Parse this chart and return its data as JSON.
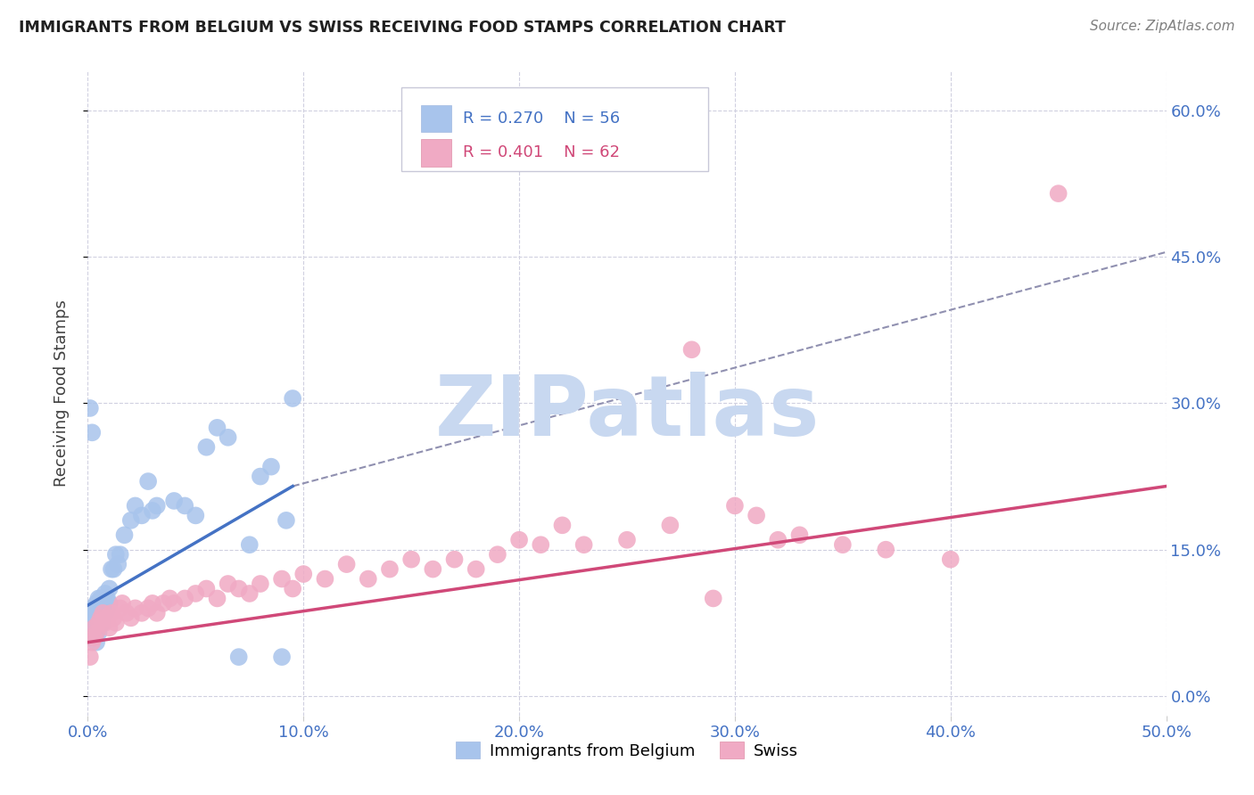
{
  "title": "IMMIGRANTS FROM BELGIUM VS SWISS RECEIVING FOOD STAMPS CORRELATION CHART",
  "source": "Source: ZipAtlas.com",
  "xlabel_ticks": [
    "0.0%",
    "10.0%",
    "20.0%",
    "30.0%",
    "40.0%",
    "50.0%"
  ],
  "xlabel_vals": [
    0.0,
    0.1,
    0.2,
    0.3,
    0.4,
    0.5
  ],
  "ylabel": "Receiving Food Stamps",
  "xlim": [
    0.0,
    0.5
  ],
  "ylim": [
    -0.02,
    0.64
  ],
  "legend_belgium_R": "0.270",
  "legend_belgium_N": "56",
  "legend_swiss_R": "0.401",
  "legend_swiss_N": "62",
  "belgium_color": "#a8c4ec",
  "swiss_color": "#f0aac4",
  "belgium_line_color": "#4472c4",
  "swiss_line_color": "#d04878",
  "dashed_line_color": "#9090b0",
  "watermark_color": "#c8d8f0",
  "grid_color": "#d0d0e0",
  "background_color": "#ffffff",
  "belgium_line_x0": 0.0,
  "belgium_line_y0": 0.093,
  "belgium_line_x1": 0.095,
  "belgium_line_y1": 0.215,
  "swiss_line_x0": 0.0,
  "swiss_line_y0": 0.055,
  "swiss_line_x1": 0.5,
  "swiss_line_y1": 0.215,
  "dashed_line_x0": 0.095,
  "dashed_line_y0": 0.215,
  "dashed_line_x1": 0.5,
  "dashed_line_y1": 0.455,
  "belgium_x": [
    0.001,
    0.001,
    0.002,
    0.002,
    0.003,
    0.003,
    0.003,
    0.003,
    0.004,
    0.004,
    0.004,
    0.004,
    0.004,
    0.005,
    0.005,
    0.005,
    0.005,
    0.006,
    0.006,
    0.006,
    0.007,
    0.007,
    0.007,
    0.007,
    0.008,
    0.008,
    0.008,
    0.009,
    0.009,
    0.01,
    0.01,
    0.011,
    0.012,
    0.013,
    0.014,
    0.015,
    0.017,
    0.02,
    0.022,
    0.025,
    0.028,
    0.03,
    0.032,
    0.04,
    0.045,
    0.05,
    0.055,
    0.06,
    0.065,
    0.07,
    0.075,
    0.08,
    0.085,
    0.09,
    0.092,
    0.095
  ],
  "belgium_y": [
    0.295,
    0.08,
    0.27,
    0.09,
    0.08,
    0.09,
    0.075,
    0.065,
    0.095,
    0.085,
    0.075,
    0.065,
    0.055,
    0.1,
    0.09,
    0.08,
    0.065,
    0.1,
    0.095,
    0.08,
    0.1,
    0.095,
    0.085,
    0.075,
    0.105,
    0.095,
    0.085,
    0.1,
    0.09,
    0.11,
    0.095,
    0.13,
    0.13,
    0.145,
    0.135,
    0.145,
    0.165,
    0.18,
    0.195,
    0.185,
    0.22,
    0.19,
    0.195,
    0.2,
    0.195,
    0.185,
    0.255,
    0.275,
    0.265,
    0.04,
    0.155,
    0.225,
    0.235,
    0.04,
    0.18,
    0.305
  ],
  "swiss_x": [
    0.001,
    0.002,
    0.003,
    0.003,
    0.004,
    0.005,
    0.006,
    0.007,
    0.008,
    0.009,
    0.01,
    0.011,
    0.012,
    0.013,
    0.015,
    0.016,
    0.018,
    0.02,
    0.022,
    0.025,
    0.028,
    0.03,
    0.032,
    0.035,
    0.038,
    0.04,
    0.045,
    0.05,
    0.055,
    0.06,
    0.065,
    0.07,
    0.075,
    0.08,
    0.09,
    0.095,
    0.1,
    0.11,
    0.12,
    0.13,
    0.14,
    0.15,
    0.16,
    0.17,
    0.18,
    0.19,
    0.2,
    0.21,
    0.22,
    0.23,
    0.25,
    0.27,
    0.28,
    0.29,
    0.3,
    0.31,
    0.32,
    0.33,
    0.35,
    0.37,
    0.4,
    0.45
  ],
  "swiss_y": [
    0.04,
    0.055,
    0.07,
    0.06,
    0.065,
    0.075,
    0.08,
    0.085,
    0.075,
    0.08,
    0.07,
    0.085,
    0.08,
    0.075,
    0.09,
    0.095,
    0.085,
    0.08,
    0.09,
    0.085,
    0.09,
    0.095,
    0.085,
    0.095,
    0.1,
    0.095,
    0.1,
    0.105,
    0.11,
    0.1,
    0.115,
    0.11,
    0.105,
    0.115,
    0.12,
    0.11,
    0.125,
    0.12,
    0.135,
    0.12,
    0.13,
    0.14,
    0.13,
    0.14,
    0.13,
    0.145,
    0.16,
    0.155,
    0.175,
    0.155,
    0.16,
    0.175,
    0.355,
    0.1,
    0.195,
    0.185,
    0.16,
    0.165,
    0.155,
    0.15,
    0.14,
    0.515
  ]
}
